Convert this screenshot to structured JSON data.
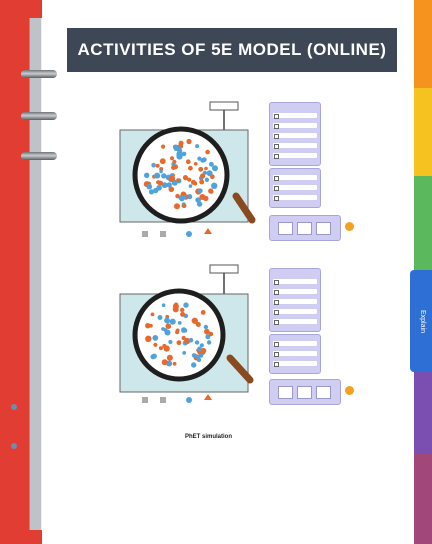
{
  "page": {
    "title": "ACTIVITIES OF 5E MODEL (ONLINE)"
  },
  "tabs": {
    "colors": [
      "#f6931f",
      "#f6c21f",
      "#5cb85c",
      "#2e6fd6",
      "#7b4fb2",
      "#a2477a"
    ],
    "active_label": "Explain",
    "active_color": "#2e6fd6"
  },
  "binder": {
    "spine_color": "#e23d33"
  },
  "illustrations": [
    {
      "name": "top",
      "panel_bg": "#cfcdf2",
      "fluid": "#cde7ea",
      "particle_colors": [
        "#e8692c",
        "#4fa3dd"
      ]
    },
    {
      "name": "bottom",
      "panel_bg": "#cfcdf2",
      "fluid": "#cde7ea",
      "particle_colors": [
        "#e8692c",
        "#4fa3dd"
      ]
    }
  ],
  "footer": {
    "caption": "PhET simulation"
  }
}
